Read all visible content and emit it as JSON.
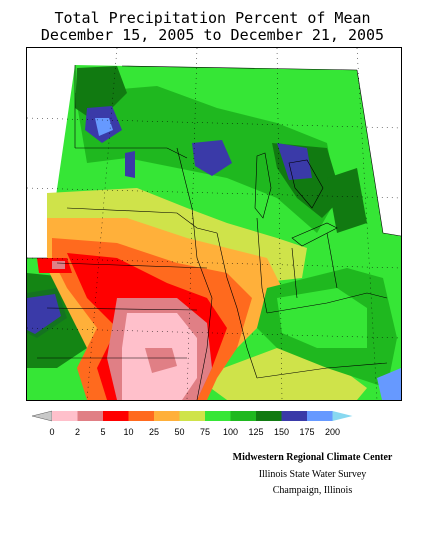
{
  "title": {
    "line1": "Total Precipitation Percent of Mean",
    "line2": "December 15, 2005 to December 21, 2005"
  },
  "legend": {
    "bins": [
      {
        "label": "0",
        "color": "#c8c8c8"
      },
      {
        "label": "2",
        "color": "#ffc0cb"
      },
      {
        "label": "5",
        "color": "#e07f85"
      },
      {
        "label": "10",
        "color": "#ff0000"
      },
      {
        "label": "25",
        "color": "#ff6a1e"
      },
      {
        "label": "50",
        "color": "#ffb03a"
      },
      {
        "label": "75",
        "color": "#cfe34a"
      },
      {
        "label": "100",
        "color": "#36e636"
      },
      {
        "label": "125",
        "color": "#1fb81f"
      },
      {
        "label": "150",
        "color": "#117a11"
      },
      {
        "label": "175",
        "color": "#3a3aa8"
      },
      {
        "label": "200",
        "color": "#6699ff"
      }
    ],
    "overflow_color": "#88d8f0"
  },
  "credits": {
    "line1": "Midwestern Regional Climate Center",
    "line2": "Illinois State Water Survey",
    "line3": "Champaign, Illinois"
  }
}
